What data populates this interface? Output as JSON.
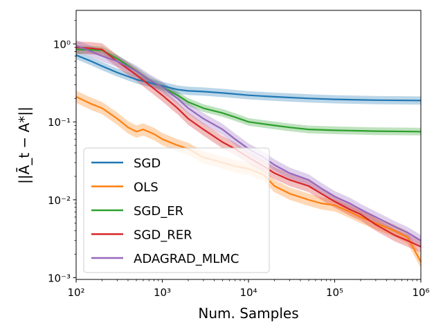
{
  "chart_data": {
    "type": "line",
    "xlabel": "Num. Samples",
    "ylabel": "||Ā_t − A*||",
    "x_scale": "log",
    "y_scale": "log",
    "xlim": [
      100,
      1000000
    ],
    "ylim": [
      0.00095,
      2.7
    ],
    "x_ticks": [
      {
        "value": 100,
        "label": "10²"
      },
      {
        "value": 1000,
        "label": "10³"
      },
      {
        "value": 10000,
        "label": "10⁴"
      },
      {
        "value": 100000,
        "label": "10⁵"
      },
      {
        "value": 1000000,
        "label": "10⁶"
      }
    ],
    "y_ticks": [
      {
        "value": 0.001,
        "label": "10⁻³"
      },
      {
        "value": 0.01,
        "label": "10⁻²"
      },
      {
        "value": 0.1,
        "label": "10⁻¹"
      },
      {
        "value": 1,
        "label": "10⁰"
      }
    ],
    "grid": false,
    "legend_position": "bottom-left",
    "series": [
      {
        "name": "SGD",
        "color": "#1f77b4",
        "band": 0.13,
        "points": [
          [
            100,
            0.72
          ],
          [
            150,
            0.6
          ],
          [
            200,
            0.52
          ],
          [
            300,
            0.43
          ],
          [
            500,
            0.35
          ],
          [
            700,
            0.32
          ],
          [
            1000,
            0.29
          ],
          [
            1500,
            0.26
          ],
          [
            2000,
            0.25
          ],
          [
            3000,
            0.245
          ],
          [
            5000,
            0.235
          ],
          [
            10000,
            0.22
          ],
          [
            20000,
            0.21
          ],
          [
            50000,
            0.2
          ],
          [
            100000,
            0.195
          ],
          [
            300000,
            0.19
          ],
          [
            1000000,
            0.188
          ]
        ]
      },
      {
        "name": "OLS",
        "color": "#ff7f0e",
        "band": 0.2,
        "points": [
          [
            100,
            0.21
          ],
          [
            150,
            0.17
          ],
          [
            200,
            0.15
          ],
          [
            300,
            0.11
          ],
          [
            400,
            0.085
          ],
          [
            500,
            0.075
          ],
          [
            600,
            0.08
          ],
          [
            800,
            0.07
          ],
          [
            1000,
            0.06
          ],
          [
            1500,
            0.05
          ],
          [
            2000,
            0.045
          ],
          [
            3000,
            0.035
          ],
          [
            5000,
            0.03
          ],
          [
            7000,
            0.027
          ],
          [
            10000,
            0.025
          ],
          [
            15000,
            0.021
          ],
          [
            20000,
            0.015
          ],
          [
            30000,
            0.012
          ],
          [
            50000,
            0.01
          ],
          [
            70000,
            0.009
          ],
          [
            100000,
            0.0085
          ],
          [
            150000,
            0.007
          ],
          [
            200000,
            0.006
          ],
          [
            300000,
            0.005
          ],
          [
            500000,
            0.004
          ],
          [
            700000,
            0.0033
          ],
          [
            1000000,
            0.0016
          ]
        ]
      },
      {
        "name": "SGD_ER",
        "color": "#2ca02c",
        "band": 0.12,
        "points": [
          [
            100,
            0.85
          ],
          [
            200,
            0.83
          ],
          [
            300,
            0.65
          ],
          [
            500,
            0.45
          ],
          [
            700,
            0.35
          ],
          [
            1000,
            0.28
          ],
          [
            1500,
            0.22
          ],
          [
            2000,
            0.18
          ],
          [
            3000,
            0.15
          ],
          [
            5000,
            0.13
          ],
          [
            7000,
            0.115
          ],
          [
            10000,
            0.1
          ],
          [
            20000,
            0.09
          ],
          [
            30000,
            0.085
          ],
          [
            50000,
            0.08
          ],
          [
            100000,
            0.078
          ],
          [
            300000,
            0.076
          ],
          [
            1000000,
            0.075
          ]
        ]
      },
      {
        "name": "SGD_RER",
        "color": "#d62728",
        "band": 0.2,
        "points": [
          [
            100,
            0.9
          ],
          [
            150,
            0.88
          ],
          [
            200,
            0.85
          ],
          [
            300,
            0.6
          ],
          [
            500,
            0.4
          ],
          [
            700,
            0.3
          ],
          [
            1000,
            0.22
          ],
          [
            1500,
            0.15
          ],
          [
            2000,
            0.11
          ],
          [
            3000,
            0.08
          ],
          [
            5000,
            0.055
          ],
          [
            7000,
            0.045
          ],
          [
            10000,
            0.035
          ],
          [
            15000,
            0.027
          ],
          [
            20000,
            0.022
          ],
          [
            30000,
            0.018
          ],
          [
            50000,
            0.015
          ],
          [
            70000,
            0.012
          ],
          [
            100000,
            0.0095
          ],
          [
            150000,
            0.0075
          ],
          [
            200000,
            0.0065
          ],
          [
            300000,
            0.0048
          ],
          [
            500000,
            0.0035
          ],
          [
            700000,
            0.003
          ],
          [
            1000000,
            0.0025
          ]
        ]
      },
      {
        "name": "ADAGRAD_MLMC",
        "color": "#9467bd",
        "band": 0.18,
        "points": [
          [
            100,
            0.95
          ],
          [
            150,
            0.8
          ],
          [
            200,
            0.7
          ],
          [
            300,
            0.6
          ],
          [
            500,
            0.45
          ],
          [
            700,
            0.35
          ],
          [
            1000,
            0.28
          ],
          [
            1500,
            0.2
          ],
          [
            2000,
            0.15
          ],
          [
            3000,
            0.11
          ],
          [
            5000,
            0.08
          ],
          [
            7000,
            0.06
          ],
          [
            10000,
            0.045
          ],
          [
            15000,
            0.035
          ],
          [
            20000,
            0.028
          ],
          [
            30000,
            0.022
          ],
          [
            50000,
            0.018
          ],
          [
            70000,
            0.014
          ],
          [
            100000,
            0.011
          ],
          [
            150000,
            0.009
          ],
          [
            200000,
            0.0075
          ],
          [
            300000,
            0.006
          ],
          [
            500000,
            0.0045
          ],
          [
            700000,
            0.0038
          ],
          [
            1000000,
            0.003
          ]
        ]
      }
    ]
  }
}
